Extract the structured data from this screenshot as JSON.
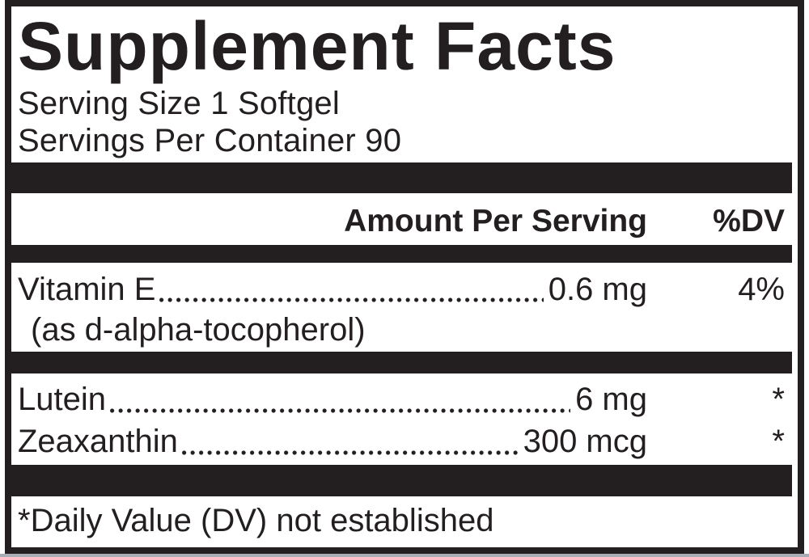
{
  "title": "Supplement Facts",
  "serving": {
    "size": "Serving Size 1 Softgel",
    "per_container": "Servings Per Container 90"
  },
  "header": {
    "amount": "Amount Per Serving",
    "dv": "%DV"
  },
  "rows": [
    {
      "name": "Vitamin E",
      "sub": "(as d-alpha-tocopherol)",
      "amount": "0.6 mg",
      "dv": "4%"
    },
    {
      "name": "Lutein",
      "amount": "6 mg",
      "dv": "*"
    },
    {
      "name": "Zeaxanthin",
      "amount": "300 mcg",
      "dv": "*"
    }
  ],
  "footnote": "*Daily Value (DV) not established",
  "colors": {
    "ink": "#231f20",
    "paper": "#ffffff",
    "edge": "#a9aeb5"
  }
}
